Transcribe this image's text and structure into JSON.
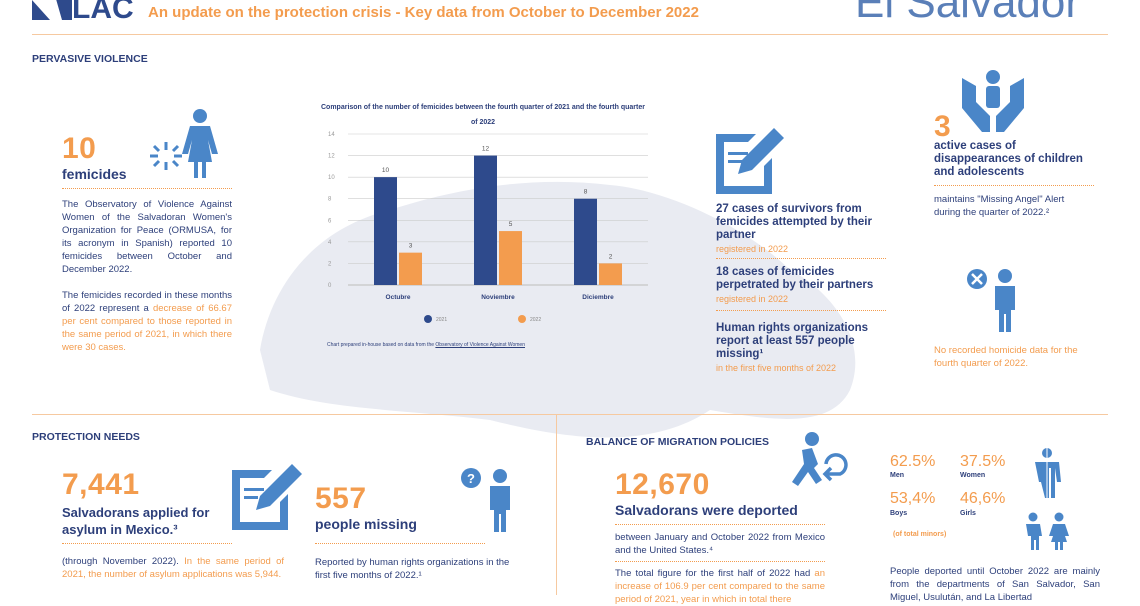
{
  "header": {
    "logo_text": "LAC",
    "subtitle": "An update on the protection crisis  - Key data from October to December 2022",
    "country": "El Salvador"
  },
  "colors": {
    "navy": "#2d3f7a",
    "orange": "#f39c4e",
    "icon_blue": "#4a86c8",
    "bar_2021": "#2e4a8c",
    "bar_2022": "#f39c4e"
  },
  "violence": {
    "section": "PERVASIVE VIOLENCE",
    "femicides_number": "10",
    "femicides_label": "femicides",
    "p1": "The Observatory of Violence Against Women of the Salvadoran Women's Organization for Peace (ORMUSA, for its acronym in Spanish) reported 10 femicides between October and December 2022.",
    "p2_a": "The femicides recorded in these months of 2022 represent a ",
    "p2_b": "decrease of 66.67 per cent compared to those reported in the same period of 2021, in which there were 30 cases.",
    "survivors": "27 cases of survivors from femicides attempted by their partner",
    "survivors_note": "registered in 2022",
    "partners": "18 cases of femicides perpetrated by their partners",
    "partners_note": "registered in 2022",
    "missing": "Human rights organizations report at least 557 people missing¹",
    "missing_note": "in the first five months of 2022",
    "disappear_number": "3",
    "disappear_label": "active cases of disappearances of children and adolescents",
    "angel": "maintains \"Missing Angel\" Alert during the quarter of 2022.²",
    "homicide": "No recorded homicide data for the fourth quarter of 2022."
  },
  "chart_data": {
    "type": "bar",
    "title": "Comparison of the number of femicides between the fourth quarter of 2021 and the fourth quarter of 2022",
    "categories": [
      "Octubre",
      "Noviembre",
      "Diciembre"
    ],
    "series": [
      {
        "name": "2021",
        "values": [
          10,
          12,
          8
        ]
      },
      {
        "name": "2022",
        "values": [
          3,
          5,
          2
        ]
      }
    ],
    "yticks": [
      "0",
      "2",
      "4",
      "6",
      "8",
      "10",
      "12",
      "14"
    ],
    "ylim": [
      0,
      14
    ],
    "grid": true,
    "legend": "bottom",
    "source_a": "Chart prepared in-house based on data from the ",
    "source_b": "Observatory of Violence Against Women"
  },
  "protection": {
    "section": "PROTECTION NEEDS",
    "asylum_number": "7,441",
    "asylum_label": "Salvadorans applied for asylum in Mexico.³",
    "asylum_a": "(through November 2022). ",
    "asylum_b": "In the same period of 2021, the number of asylum applications was 5,944.",
    "missing_number": "557",
    "missing_label": "people missing",
    "missing_text": "Reported by human rights organizations in the first five months of 2022.¹"
  },
  "migration": {
    "section": "BALANCE OF MIGRATION POLICIES",
    "deported_number": "12,670",
    "deported_label": "Salvadorans were deported",
    "deported_text": "between January and October 2022 from Mexico and the United States.⁴",
    "total_a": "The total figure for the first half of 2022 had ",
    "total_b": "an increase of 106.9 per cent compared to the same period of 2021, year in which in total there",
    "men_pct": "62.5%",
    "men": "Men",
    "women_pct": "37.5%",
    "women": "Women",
    "boys_pct": "53,4%",
    "boys": "Boys",
    "girls_pct": "46,6%",
    "girls": "Girls",
    "minors_note": "(of total minors)",
    "departments": "People deported until October 2022 are mainly from the departments of San Salvador, San Miguel, Usulután, and La Libertad"
  }
}
